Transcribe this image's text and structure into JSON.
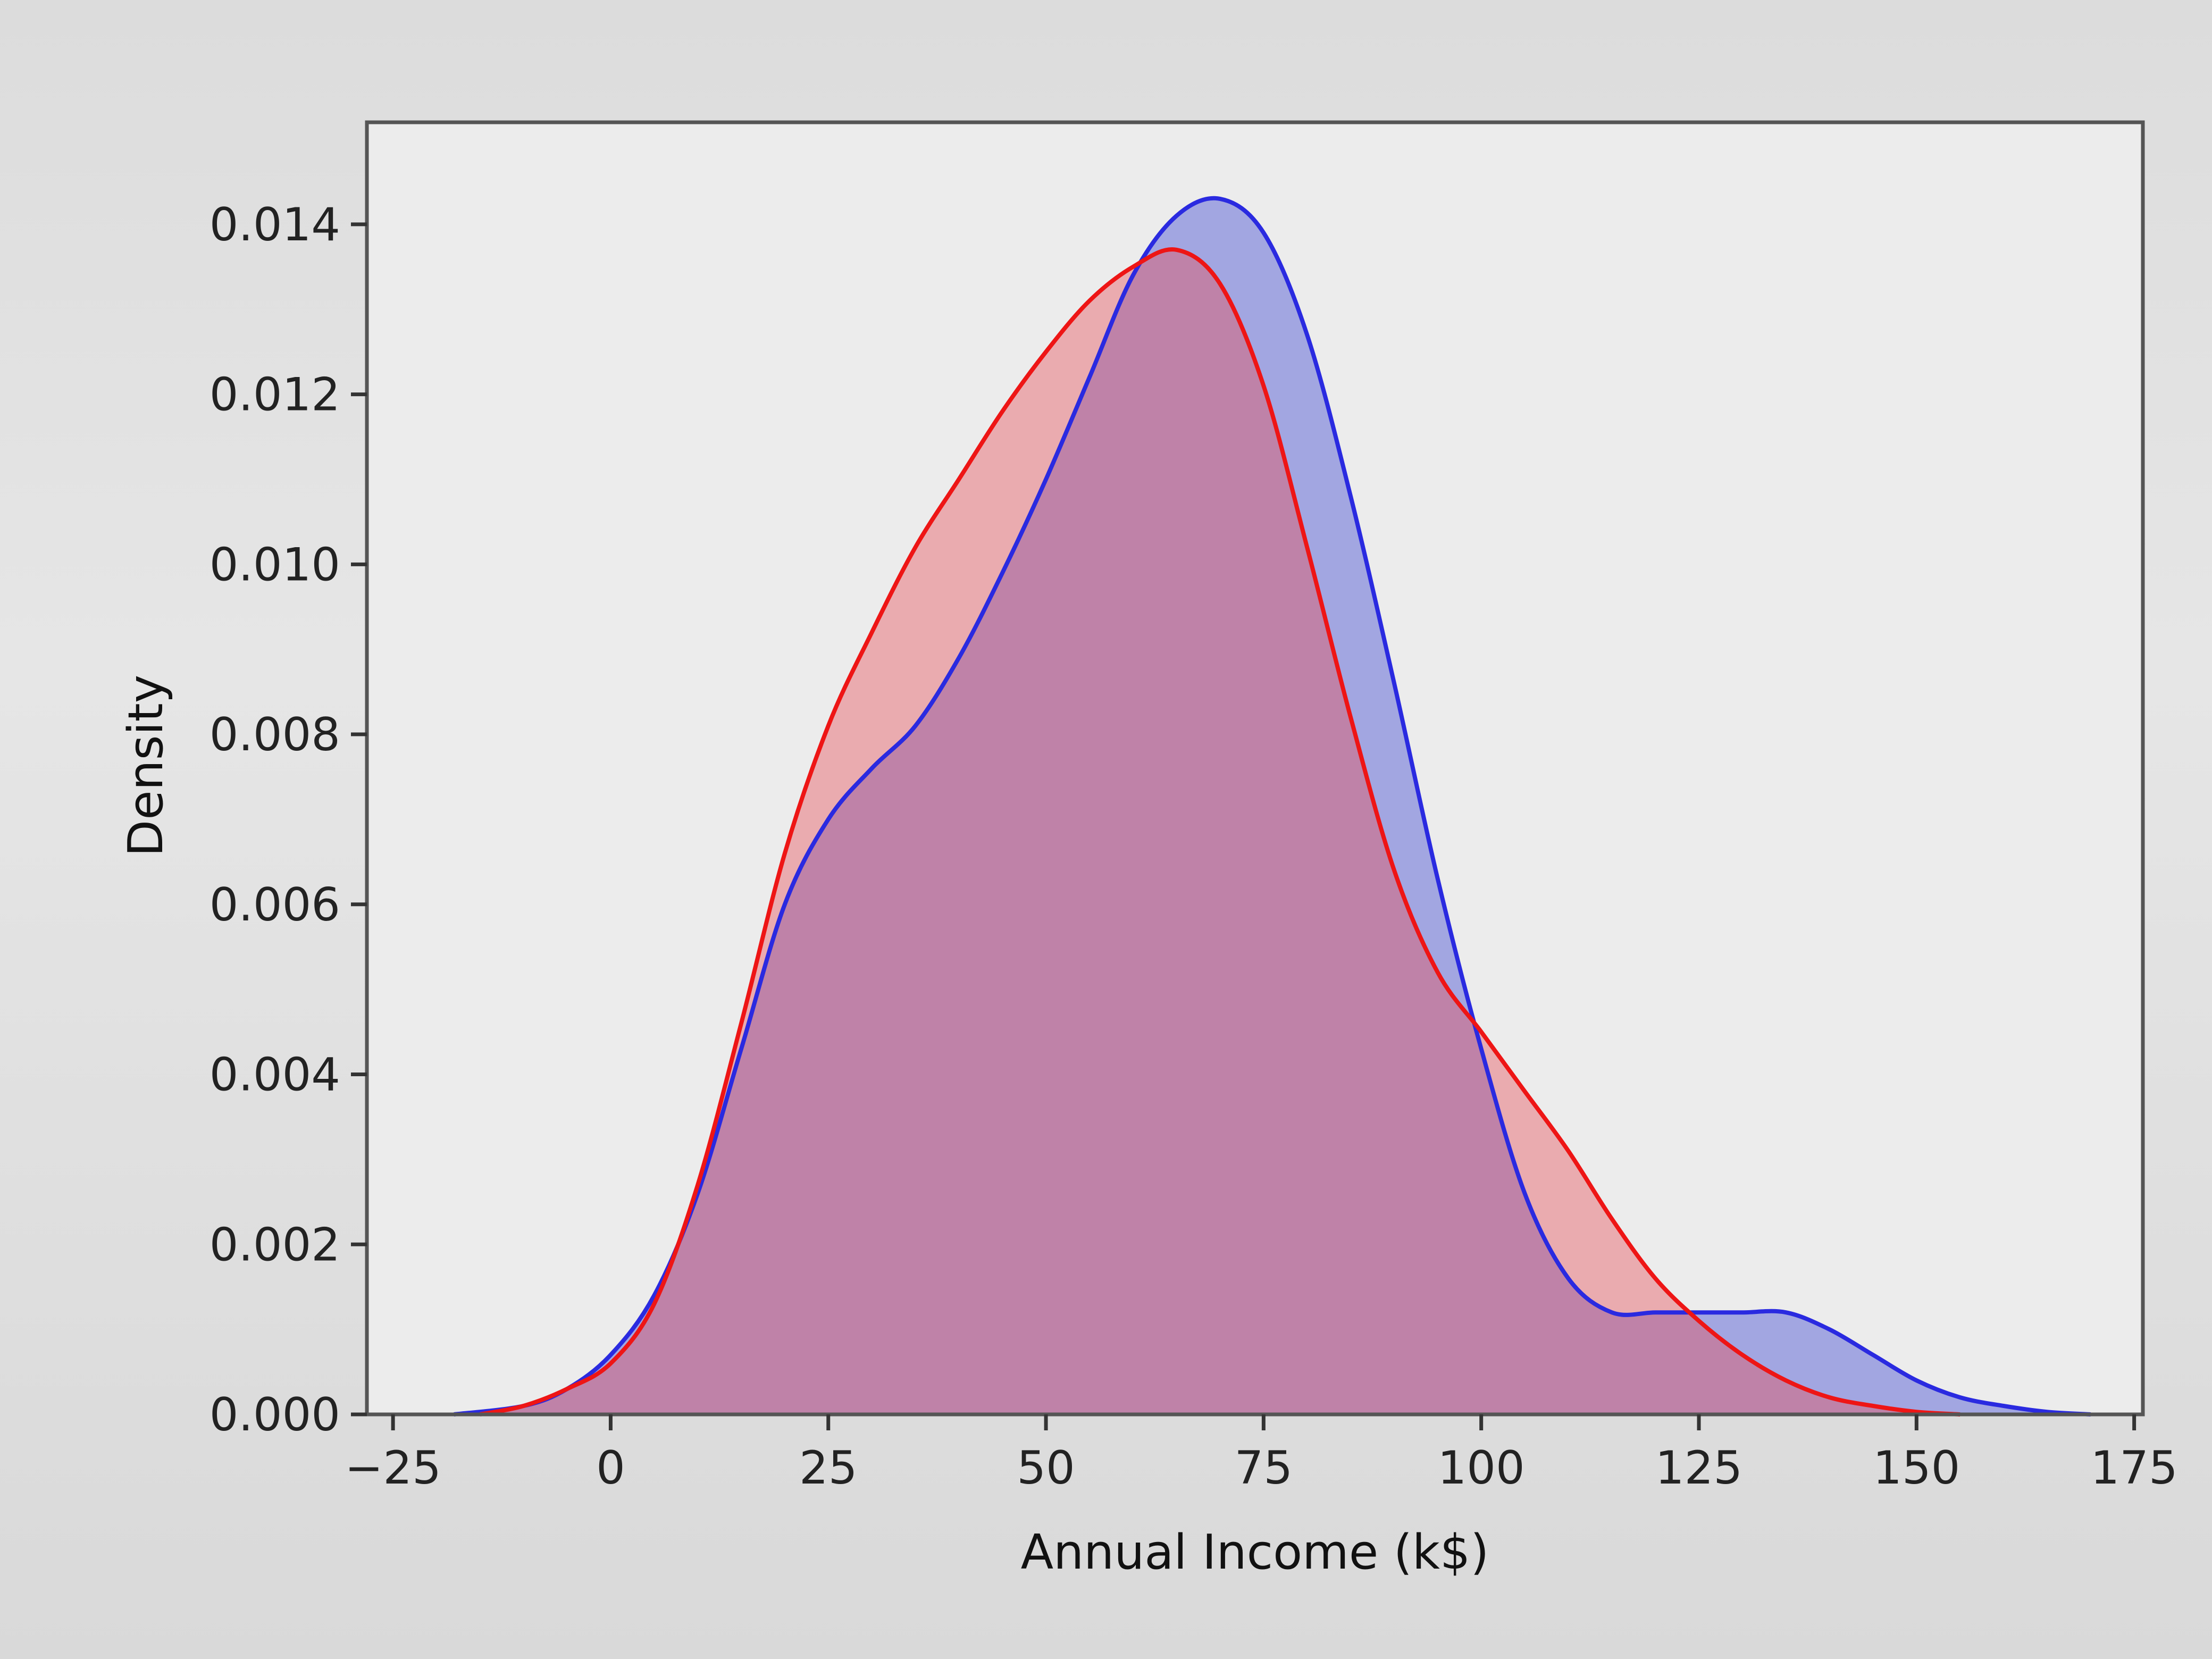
{
  "chart_data": {
    "type": "area",
    "xlabel": "Annual Income (k$)",
    "ylabel": "Density",
    "xlim": [
      -28,
      176
    ],
    "ylim": [
      0,
      0.0152
    ],
    "xticks": [
      -25,
      0,
      25,
      50,
      75,
      100,
      125,
      150,
      175
    ],
    "xtick_labels": [
      "−25",
      "0",
      "25",
      "50",
      "75",
      "100",
      "125",
      "150",
      "175"
    ],
    "yticks": [
      0,
      0.002,
      0.004,
      0.006,
      0.008,
      0.01,
      0.012,
      0.014
    ],
    "ytick_labels": [
      "0.000",
      "0.002",
      "0.004",
      "0.006",
      "0.008",
      "0.010",
      "0.012",
      "0.014"
    ],
    "grid": false,
    "series": [
      {
        "color": "#2a2ae0",
        "fill": "#3c46d2",
        "x": [
          -18,
          -10,
          -5,
          0,
          5,
          10,
          15,
          20,
          25,
          30,
          35,
          40,
          45,
          50,
          55,
          60,
          65,
          70,
          75,
          80,
          85,
          90,
          95,
          100,
          105,
          110,
          115,
          120,
          125,
          130,
          135,
          140,
          145,
          150,
          155,
          160,
          165,
          170
        ],
        "y": [
          0.0,
          0.0001,
          0.0003,
          0.0007,
          0.0014,
          0.0026,
          0.0043,
          0.006,
          0.007,
          0.0076,
          0.0081,
          0.0089,
          0.0099,
          0.011,
          0.0122,
          0.0134,
          0.0141,
          0.0143,
          0.0139,
          0.0127,
          0.0108,
          0.0086,
          0.0063,
          0.0043,
          0.0026,
          0.0016,
          0.0012,
          0.0012,
          0.0012,
          0.0012,
          0.0012,
          0.001,
          0.0007,
          0.0004,
          0.0002,
          0.0001,
          3e-05,
          0.0
        ]
      },
      {
        "color": "#ee1515",
        "fill": "#e8505a",
        "x": [
          -15,
          -10,
          -5,
          0,
          5,
          10,
          15,
          20,
          25,
          30,
          35,
          40,
          45,
          50,
          55,
          60,
          65,
          70,
          75,
          80,
          85,
          90,
          95,
          100,
          105,
          110,
          115,
          120,
          125,
          130,
          135,
          140,
          145,
          150,
          155
        ],
        "y": [
          0.0,
          0.0001,
          0.0003,
          0.0006,
          0.0013,
          0.0027,
          0.0046,
          0.0066,
          0.0081,
          0.0092,
          0.0102,
          0.011,
          0.0118,
          0.0125,
          0.0131,
          0.0135,
          0.0137,
          0.0133,
          0.0121,
          0.0102,
          0.0082,
          0.0064,
          0.0052,
          0.0045,
          0.0038,
          0.0031,
          0.0023,
          0.0016,
          0.0011,
          0.0007,
          0.0004,
          0.0002,
          0.0001,
          3e-05,
          0.0
        ]
      }
    ]
  }
}
